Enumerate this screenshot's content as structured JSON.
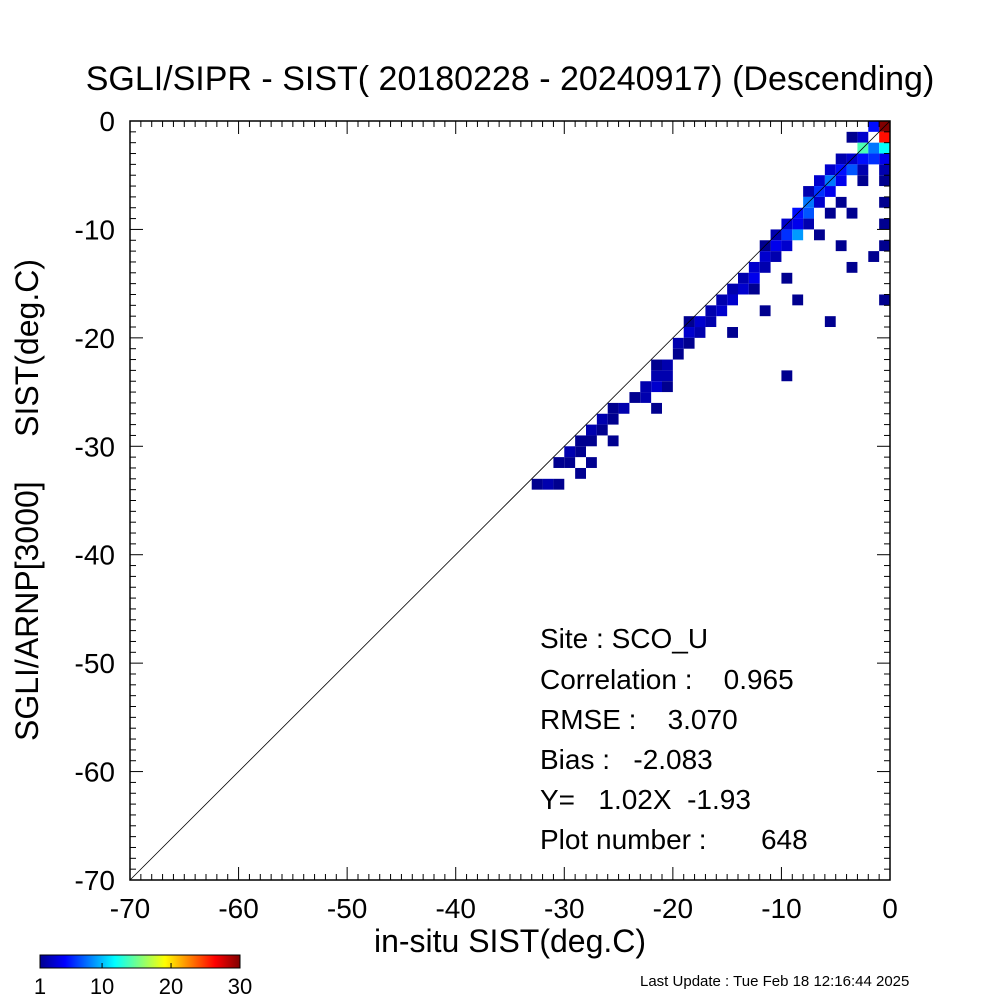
{
  "chart_data": {
    "type": "heatmap",
    "title": "SGLI/SIPR - SIST( 20180228 - 20240917) (Descending)",
    "xlabel": "in-situ SIST(deg.C)",
    "ylabel": "SGLI/ARNP[3000]     SIST(deg.C)",
    "xlim": [
      -70,
      0
    ],
    "ylim": [
      -70,
      0
    ],
    "xticks": [
      -70,
      -60,
      -50,
      -40,
      -30,
      -20,
      -10,
      0
    ],
    "yticks": [
      -70,
      -60,
      -50,
      -40,
      -30,
      -20,
      -10,
      0
    ],
    "xtick_labels": [
      "-70",
      "-60",
      "-50",
      "-40",
      "-30",
      "-20",
      "-10",
      "0"
    ],
    "ytick_labels": [
      "-70",
      "-60",
      "-50",
      "-40",
      "-30",
      "-20",
      "-10",
      "0"
    ],
    "reference_line": "1:1 line from (-70,-70) to (0,0)",
    "bin_size": 1,
    "colorbar": {
      "min": 1,
      "max": 30,
      "ticks": [
        1,
        10,
        20,
        30
      ],
      "tick_labels": [
        "1",
        "10",
        "20",
        "30"
      ],
      "colormap": "jet",
      "position": "bottom-left"
    },
    "cells": [
      [
        -0.5,
        -0.5,
        30
      ],
      [
        -0.5,
        -1.5,
        26
      ],
      [
        -1.5,
        -0.5,
        5
      ],
      [
        -2.5,
        -1.5,
        3
      ],
      [
        -3.5,
        -1.5,
        1
      ],
      [
        -2.5,
        -2.5,
        14
      ],
      [
        -1.5,
        -2.5,
        8
      ],
      [
        -0.5,
        -2.5,
        12
      ],
      [
        -0.5,
        -3.5,
        4
      ],
      [
        -1.5,
        -3.5,
        6
      ],
      [
        -2.5,
        -3.5,
        5
      ],
      [
        -3.5,
        -3.5,
        3
      ],
      [
        -4.5,
        -3.5,
        2
      ],
      [
        -3.5,
        -4.5,
        7
      ],
      [
        -4.5,
        -4.5,
        5
      ],
      [
        -5.5,
        -4.5,
        3
      ],
      [
        -2.5,
        -4.5,
        2
      ],
      [
        -0.5,
        -4.5,
        2
      ],
      [
        -5.5,
        -5.5,
        8
      ],
      [
        -4.5,
        -5.5,
        4
      ],
      [
        -6.5,
        -5.5,
        3
      ],
      [
        -0.5,
        -5.5,
        1
      ],
      [
        -2.5,
        -5.5,
        1
      ],
      [
        -6.5,
        -6.5,
        6
      ],
      [
        -5.5,
        -6.5,
        4
      ],
      [
        -7.5,
        -6.5,
        2
      ],
      [
        -4.5,
        -7.5,
        1
      ],
      [
        -7.5,
        -7.5,
        8
      ],
      [
        -6.5,
        -7.5,
        3
      ],
      [
        -0.5,
        -7.5,
        1
      ],
      [
        -8.5,
        -8.5,
        5
      ],
      [
        -7.5,
        -8.5,
        7
      ],
      [
        -3.5,
        -8.5,
        1
      ],
      [
        -5.5,
        -8.5,
        1
      ],
      [
        -8.5,
        -9.5,
        4
      ],
      [
        -9.5,
        -9.5,
        3
      ],
      [
        -7.5,
        -9.5,
        2
      ],
      [
        -0.5,
        -9.5,
        1
      ],
      [
        -9.5,
        -10.5,
        6
      ],
      [
        -8.5,
        -10.5,
        9
      ],
      [
        -10.5,
        -10.5,
        2
      ],
      [
        -6.5,
        -10.5,
        1
      ],
      [
        -10.5,
        -11.5,
        4
      ],
      [
        -9.5,
        -11.5,
        3
      ],
      [
        -11.5,
        -11.5,
        1
      ],
      [
        -4.5,
        -11.5,
        1
      ],
      [
        -0.5,
        -11.5,
        1
      ],
      [
        -11.5,
        -12.5,
        3
      ],
      [
        -10.5,
        -12.5,
        2
      ],
      [
        -1.5,
        -12.5,
        1
      ],
      [
        -12.5,
        -13.5,
        3
      ],
      [
        -11.5,
        -13.5,
        2
      ],
      [
        -3.5,
        -13.5,
        1
      ],
      [
        -12.5,
        -14.5,
        4
      ],
      [
        -13.5,
        -14.5,
        2
      ],
      [
        -9.5,
        -14.5,
        1
      ],
      [
        -13.5,
        -15.5,
        3
      ],
      [
        -14.5,
        -15.5,
        2
      ],
      [
        -12.5,
        -15.5,
        1
      ],
      [
        -14.5,
        -16.5,
        3
      ],
      [
        -15.5,
        -16.5,
        2
      ],
      [
        -8.5,
        -16.5,
        1
      ],
      [
        -0.5,
        -16.5,
        1
      ],
      [
        -16.5,
        -17.5,
        2
      ],
      [
        -15.5,
        -17.5,
        3
      ],
      [
        -11.5,
        -17.5,
        1
      ],
      [
        -17.5,
        -18.5,
        3
      ],
      [
        -16.5,
        -18.5,
        2
      ],
      [
        -18.5,
        -18.5,
        1
      ],
      [
        -5.5,
        -18.5,
        1
      ],
      [
        -18.5,
        -19.5,
        3
      ],
      [
        -17.5,
        -19.5,
        2
      ],
      [
        -14.5,
        -19.5,
        1
      ],
      [
        -19.5,
        -20.5,
        2
      ],
      [
        -18.5,
        -20.5,
        1
      ],
      [
        -19.5,
        -21.5,
        1
      ],
      [
        -20.5,
        -22.5,
        2
      ],
      [
        -21.5,
        -22.5,
        1
      ],
      [
        -20.5,
        -23.5,
        2
      ],
      [
        -21.5,
        -23.5,
        2
      ],
      [
        -9.5,
        -23.5,
        1
      ],
      [
        -21.5,
        -24.5,
        3
      ],
      [
        -22.5,
        -24.5,
        2
      ],
      [
        -20.5,
        -24.5,
        1
      ],
      [
        -22.5,
        -25.5,
        2
      ],
      [
        -23.5,
        -25.5,
        1
      ],
      [
        -24.5,
        -26.5,
        2
      ],
      [
        -25.5,
        -26.5,
        1
      ],
      [
        -21.5,
        -26.5,
        1
      ],
      [
        -26.5,
        -27.5,
        2
      ],
      [
        -25.5,
        -27.5,
        1
      ],
      [
        -27.5,
        -28.5,
        2
      ],
      [
        -26.5,
        -28.5,
        1
      ],
      [
        -28.5,
        -29.5,
        1
      ],
      [
        -27.5,
        -29.5,
        1
      ],
      [
        -25.5,
        -29.5,
        1
      ],
      [
        -29.5,
        -30.5,
        2
      ],
      [
        -28.5,
        -30.5,
        1
      ],
      [
        -30.5,
        -31.5,
        1
      ],
      [
        -29.5,
        -31.5,
        1
      ],
      [
        -27.5,
        -31.5,
        1
      ],
      [
        -28.5,
        -32.5,
        1
      ],
      [
        -31.5,
        -33.5,
        2
      ],
      [
        -30.5,
        -33.5,
        1
      ],
      [
        -32.5,
        -33.5,
        1
      ]
    ]
  },
  "stats": {
    "site": "Site : SCO_U",
    "correlation": "Correlation :    0.965",
    "rmse": "RMSE :    3.070",
    "bias": "Bias :   -2.083",
    "regression": "Y=   1.02X  -1.93",
    "plot_number": "Plot number :       648"
  },
  "footer": {
    "last_update": "Last Update : Tue Feb 18 12:16:44 2025"
  }
}
